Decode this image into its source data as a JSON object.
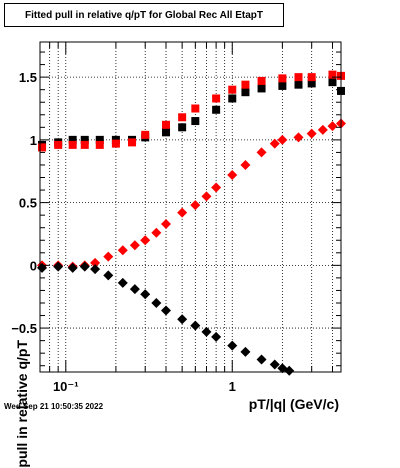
{
  "header": {
    "title": "Fitted pull in relative q/pT for Global Rec All EtapT",
    "timestamp": "Wed Sep 21 10:50:35 2022"
  },
  "chart_data": {
    "type": "scatter",
    "title": "Fitted pull in relative q/pT for Global Rec All EtapT",
    "xlabel": "pT/|q| (GeV/c)",
    "ylabel": "pull in relative q/pT",
    "x_scale": "log",
    "xlim": [
      0.07,
      4.5
    ],
    "ylim": [
      -0.85,
      1.78
    ],
    "grid": true,
    "x_tick_labels": [
      "10⁻¹",
      "1"
    ],
    "y_ticks": [
      -0.5,
      0,
      0.5,
      1,
      1.5
    ],
    "y_tick_labels": [
      "−0.5",
      "0",
      "0.5",
      "1",
      "1.5"
    ],
    "colors": {
      "black": "#000000",
      "red": "#ff0000"
    },
    "series": [
      {
        "color": "black",
        "marker": "square",
        "x": [
          0.072,
          0.09,
          0.11,
          0.13,
          0.16,
          0.2,
          0.25,
          0.3,
          0.4,
          0.5,
          0.6,
          0.8,
          1.0,
          1.2,
          1.5,
          2.0,
          2.5,
          3.0,
          4.0,
          4.5
        ],
        "y": [
          0.96,
          0.98,
          1.0,
          1.0,
          1.0,
          1.0,
          1.0,
          1.02,
          1.06,
          1.1,
          1.15,
          1.24,
          1.33,
          1.38,
          1.41,
          1.43,
          1.44,
          1.45,
          1.46,
          1.39
        ]
      },
      {
        "color": "red",
        "marker": "square",
        "x": [
          0.072,
          0.09,
          0.11,
          0.13,
          0.16,
          0.2,
          0.25,
          0.3,
          0.4,
          0.5,
          0.6,
          0.8,
          1.0,
          1.2,
          1.5,
          2.0,
          2.5,
          3.0,
          4.0,
          4.5
        ],
        "y": [
          0.94,
          0.96,
          0.96,
          0.96,
          0.96,
          0.97,
          0.98,
          1.04,
          1.12,
          1.18,
          1.25,
          1.33,
          1.4,
          1.44,
          1.47,
          1.49,
          1.5,
          1.5,
          1.52,
          1.51
        ]
      },
      {
        "color": "red",
        "marker": "diamond",
        "x": [
          0.072,
          0.09,
          0.11,
          0.13,
          0.15,
          0.18,
          0.22,
          0.26,
          0.3,
          0.35,
          0.4,
          0.5,
          0.6,
          0.7,
          0.8,
          1.0,
          1.2,
          1.5,
          1.8,
          2.0,
          2.5,
          3.0,
          3.5,
          4.0,
          4.5
        ],
        "y": [
          0.0,
          0.0,
          -0.01,
          0.0,
          0.02,
          0.07,
          0.12,
          0.16,
          0.2,
          0.26,
          0.33,
          0.42,
          0.48,
          0.55,
          0.62,
          0.72,
          0.8,
          0.9,
          0.97,
          1.0,
          1.02,
          1.05,
          1.08,
          1.11,
          1.13
        ]
      },
      {
        "color": "black",
        "marker": "diamond",
        "x": [
          0.072,
          0.09,
          0.11,
          0.13,
          0.15,
          0.18,
          0.22,
          0.26,
          0.3,
          0.35,
          0.4,
          0.5,
          0.6,
          0.7,
          0.8,
          1.0,
          1.2,
          1.5,
          1.8,
          2.0,
          2.2
        ],
        "y": [
          -0.02,
          -0.01,
          -0.02,
          -0.01,
          -0.03,
          -0.08,
          -0.14,
          -0.19,
          -0.23,
          -0.3,
          -0.36,
          -0.43,
          -0.48,
          -0.53,
          -0.57,
          -0.64,
          -0.69,
          -0.75,
          -0.79,
          -0.82,
          -0.84
        ]
      }
    ]
  }
}
